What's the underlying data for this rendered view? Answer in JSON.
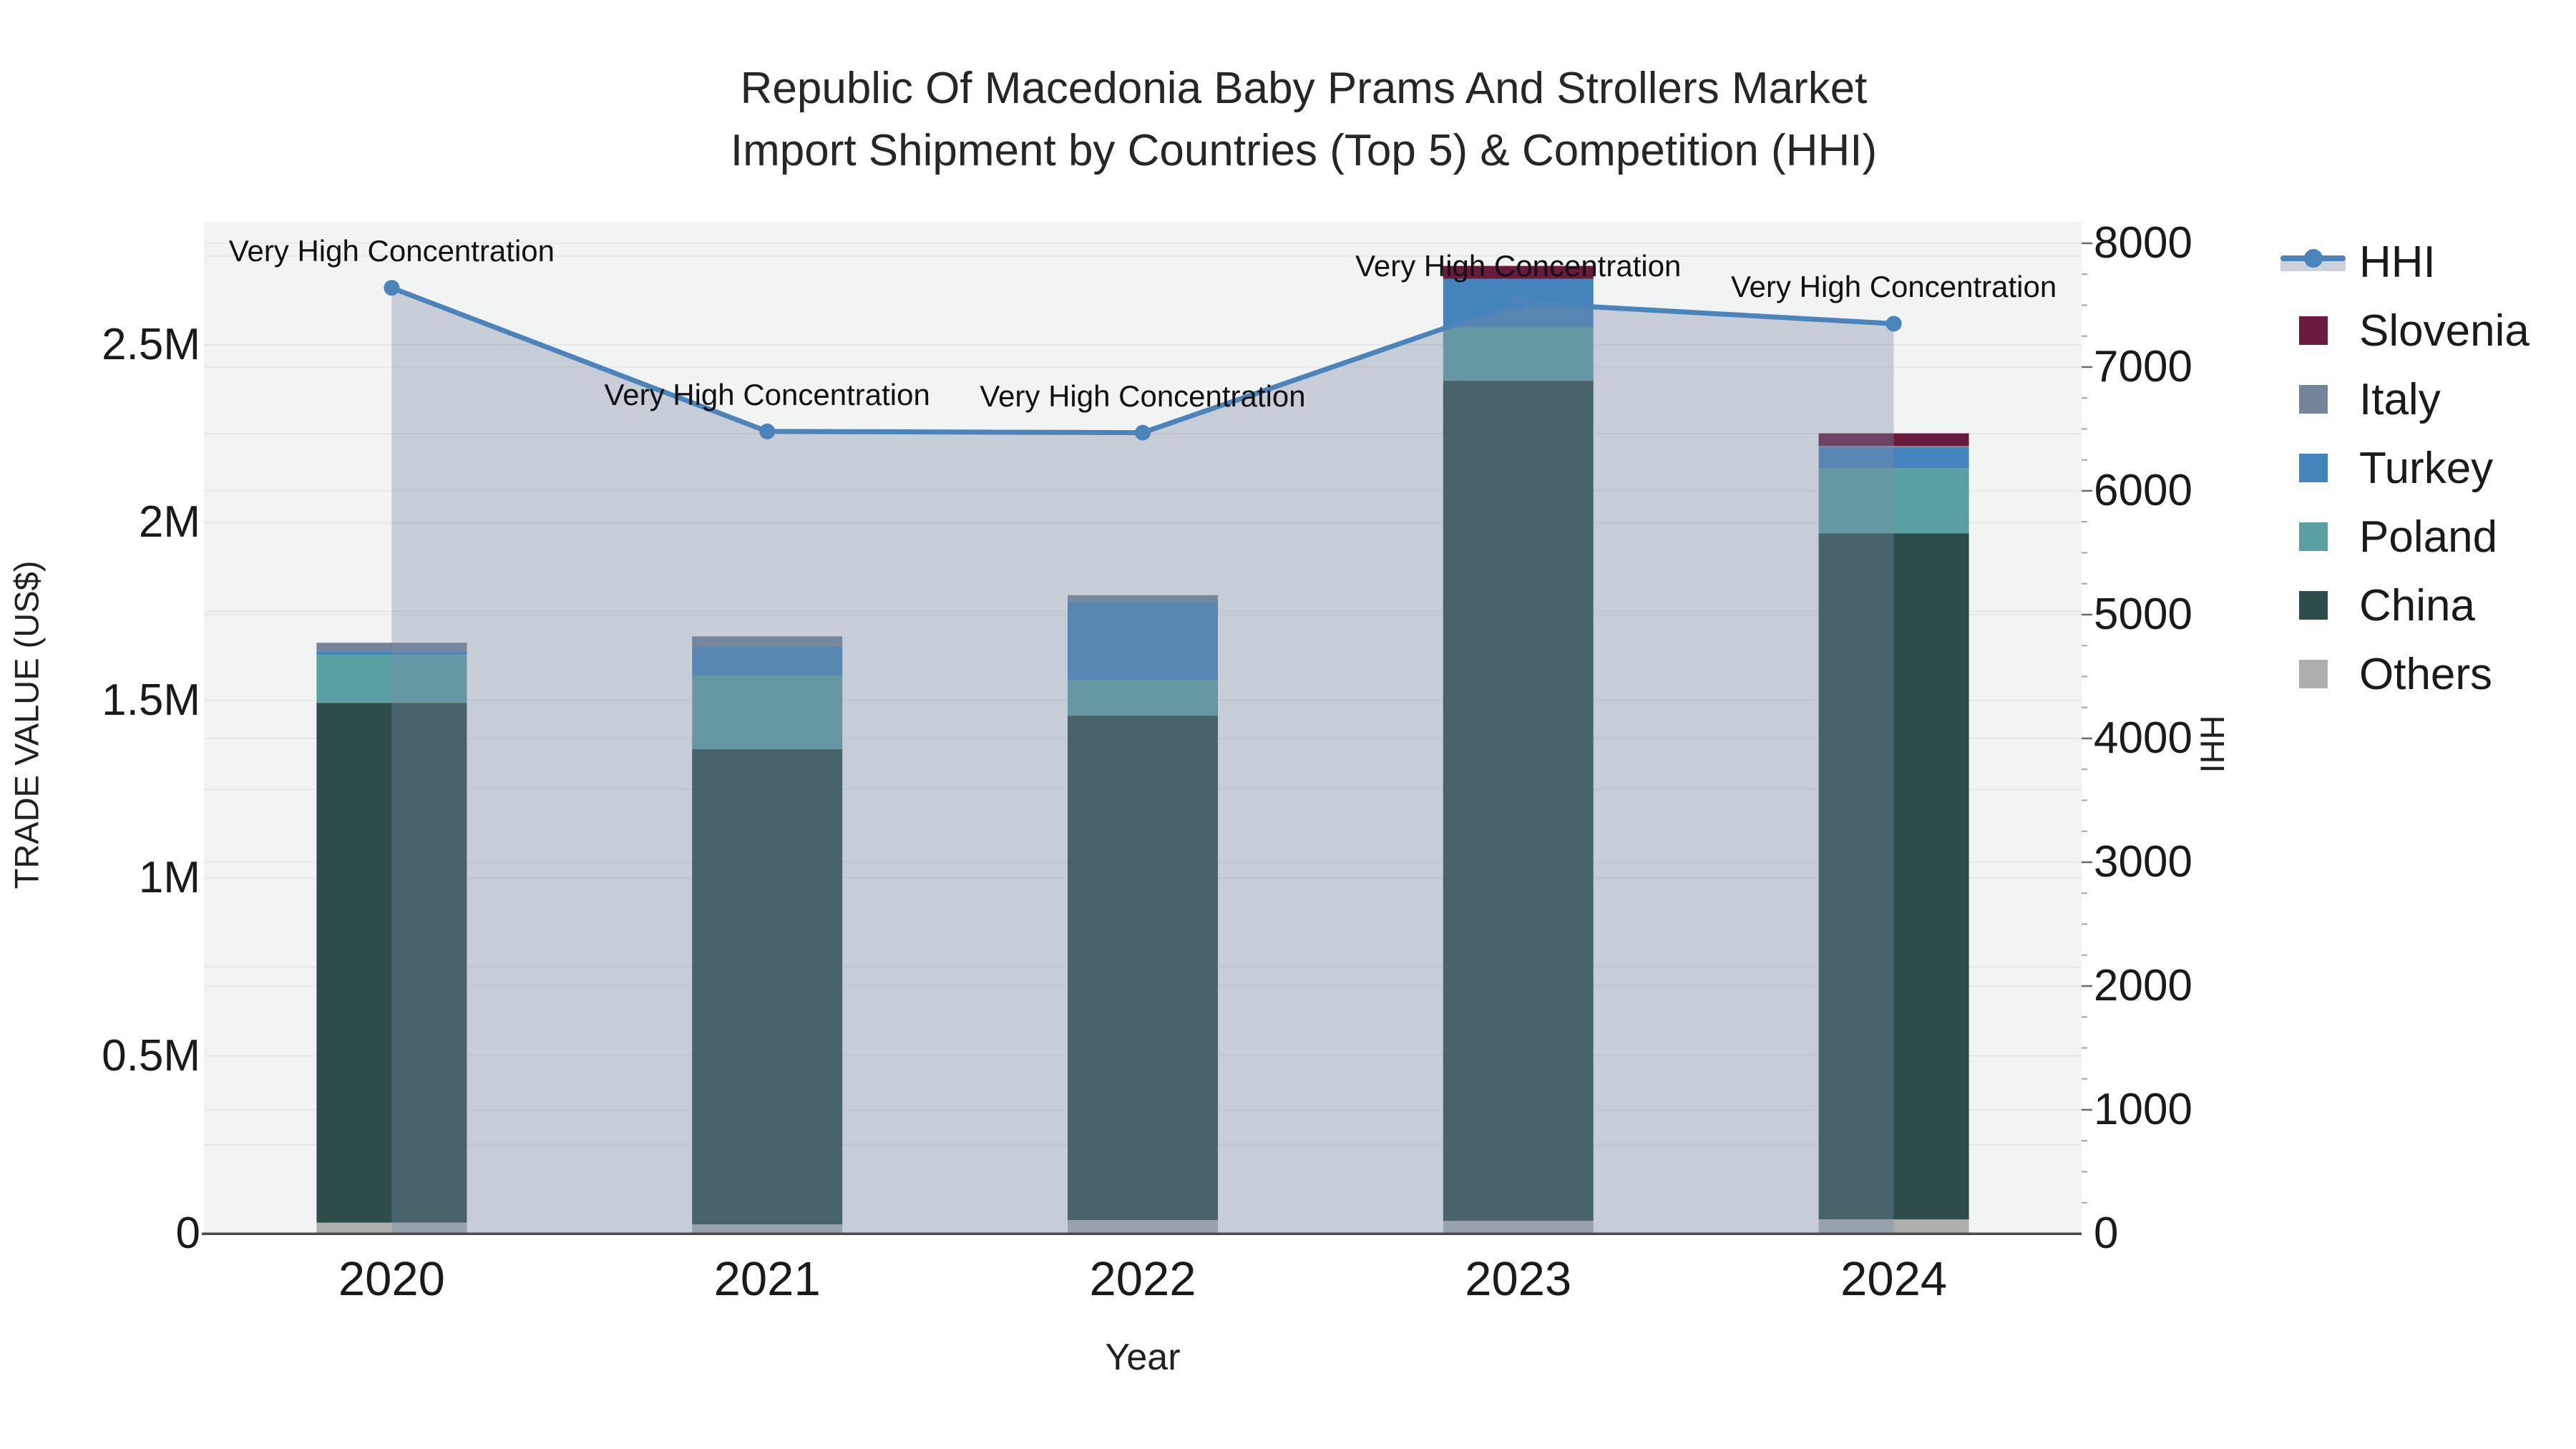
{
  "chart_data": {
    "type": "bar",
    "subtype": "stacked-bars-with-hhi-line",
    "title_line1": "Republic Of Macedonia Baby Prams And Strollers Market",
    "title_line2": "Import Shipment by Countries (Top 5) & Competition (HHI)",
    "xlabel": "Year",
    "ylabel_left": "TRADE VALUE (US$)",
    "ylabel_right": "HHI",
    "categories": [
      "2020",
      "2021",
      "2022",
      "2023",
      "2024"
    ],
    "series": [
      {
        "name": "Others",
        "color": "#ACAFAC",
        "values": [
          31000,
          26000,
          38000,
          36000,
          40000
        ]
      },
      {
        "name": "China",
        "color": "#2E4D4A",
        "values": [
          1462000,
          1337000,
          1419000,
          2363000,
          1930000
        ]
      },
      {
        "name": "Poland",
        "color": "#5AA0A1",
        "values": [
          135000,
          207000,
          100000,
          150000,
          183000
        ]
      },
      {
        "name": "Turkey",
        "color": "#4484BC",
        "values": [
          10000,
          82000,
          220000,
          137000,
          57000
        ]
      },
      {
        "name": "Italy",
        "color": "#74859A",
        "values": [
          24000,
          28000,
          19000,
          0,
          6000
        ]
      },
      {
        "name": "Slovenia",
        "color": "#6A1B3D",
        "values": [
          0,
          0,
          0,
          36000,
          35000
        ]
      }
    ],
    "line_series": {
      "name": "HHI",
      "color": "#4B84BB",
      "fill_color": "rgba(122,138,163,0.36)",
      "values": [
        7640,
        6480,
        6470,
        7520,
        7350
      ]
    },
    "annotations": [
      "Very High Concentration",
      "Very High Concentration",
      "Very High Concentration",
      "Very High Concentration",
      "Very High Concentration"
    ],
    "y_left": {
      "tick_labels": [
        "0",
        "0.5M",
        "1M",
        "1.5M",
        "2M",
        "2.5M"
      ],
      "tick_values": [
        0,
        500000,
        1000000,
        1500000,
        2000000,
        2500000
      ],
      "ylim": [
        0,
        2846000
      ]
    },
    "y_right": {
      "tick_labels": [
        "0",
        "1000",
        "2000",
        "3000",
        "4000",
        "5000",
        "6000",
        "7000",
        "8000"
      ],
      "tick_values": [
        0,
        1000,
        2000,
        3000,
        4000,
        5000,
        6000,
        7000,
        8000
      ],
      "ylim": [
        0,
        8173
      ]
    },
    "legend": {
      "items": [
        {
          "label": "HHI",
          "type": "line",
          "color": "#4B84BB"
        },
        {
          "label": "Slovenia",
          "type": "swatch",
          "color": "#6A1B3D"
        },
        {
          "label": "Italy",
          "type": "swatch",
          "color": "#74859A"
        },
        {
          "label": "Turkey",
          "type": "swatch",
          "color": "#4484BC"
        },
        {
          "label": "Poland",
          "type": "swatch",
          "color": "#5AA0A1"
        },
        {
          "label": "China",
          "type": "swatch",
          "color": "#2E4D4A"
        },
        {
          "label": "Others",
          "type": "swatch",
          "color": "#ACAFAC"
        }
      ]
    },
    "grid": true,
    "plot_bg_color": "#F2F3F3",
    "axis_line_color": "#4A4A4A"
  }
}
